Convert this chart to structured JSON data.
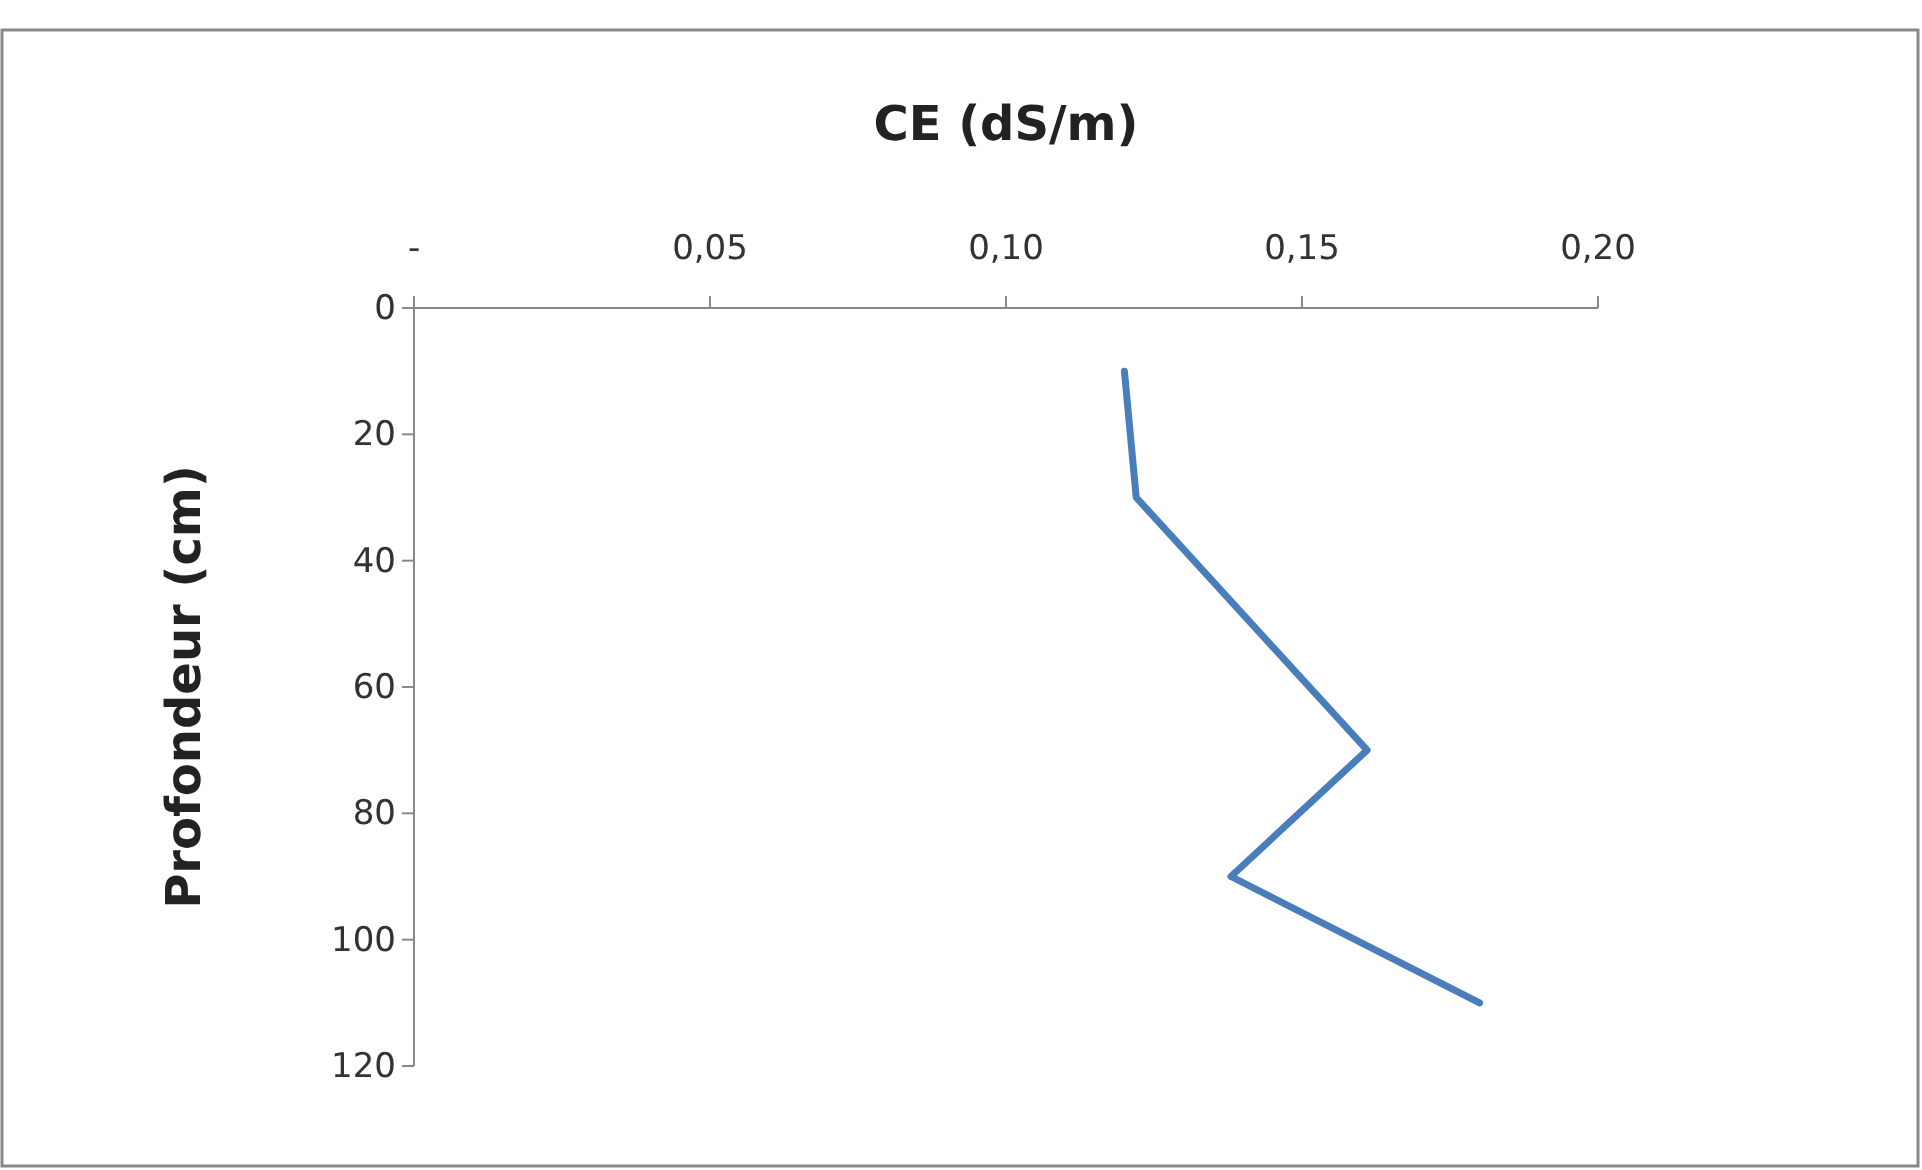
{
  "chart_data": {
    "type": "line",
    "xlabel": "CE (dS/m)",
    "ylabel": "Profondeur  (cm)",
    "x": [
      0.12,
      0.122,
      0.161,
      0.138,
      0.18
    ],
    "series": [
      {
        "color": "#4a7ebb",
        "values": [
          10,
          30,
          70,
          90,
          110
        ]
      }
    ],
    "xlim": [
      0,
      0.2
    ],
    "xticks": [
      {
        "value": 0,
        "label": "-"
      },
      {
        "value": 0.05,
        "label": "0,05"
      },
      {
        "value": 0.1,
        "label": "0,10"
      },
      {
        "value": 0.15,
        "label": "0,15"
      },
      {
        "value": 0.2,
        "label": "0,20"
      }
    ],
    "ylim": [
      120,
      0
    ],
    "yticks": [
      0,
      20,
      40,
      60,
      80,
      100,
      120
    ],
    "grid": false,
    "marker": "none",
    "line_style": "solid"
  }
}
